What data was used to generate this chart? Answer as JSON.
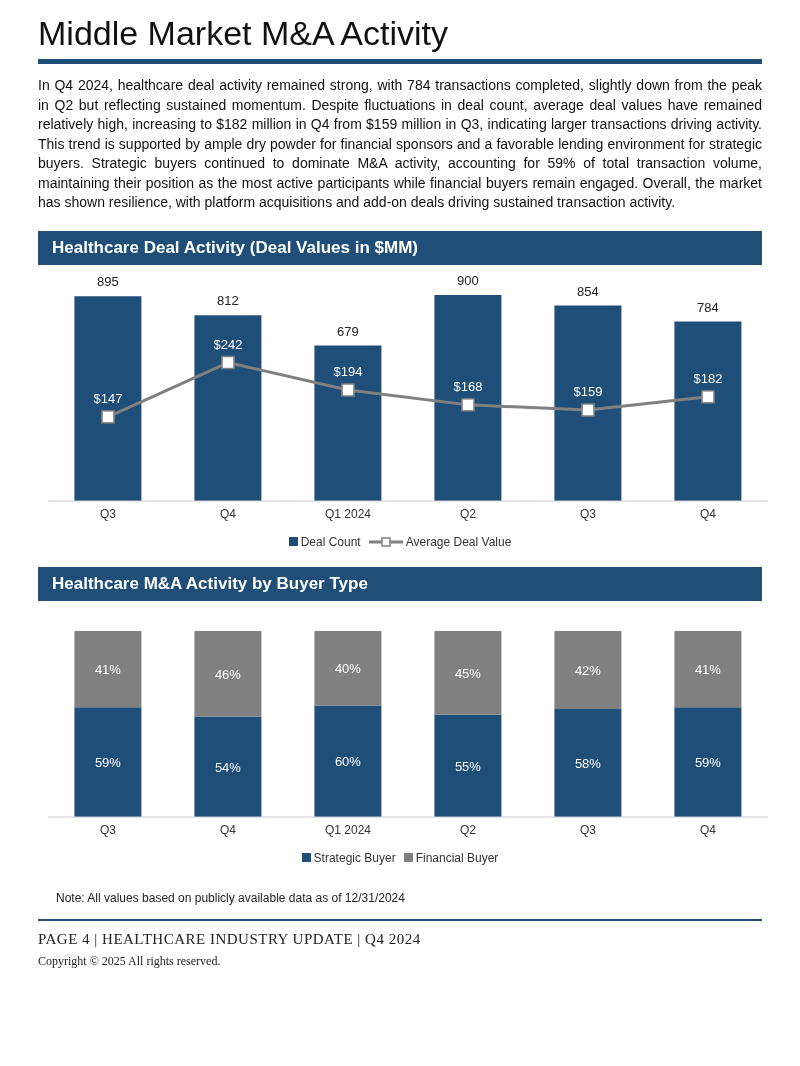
{
  "chart_data": [
    {
      "type": "other",
      "title": "Middle Market M&A Activity",
      "annotations": [
        "In Q4 2024, healthcare deal activity remained strong, with 784 transactions completed, slightly down from the peak in Q2 but reflecting sustained momentum. Despite fluctuations in deal count, average deal values have remained relatively high, increasing to $182 million in Q4 from $159 million in Q3, indicating larger transactions driving activity. This trend is supported by ample dry powder for financial sponsors and a favorable lending environment for strategic buyers. Strategic buyers continued to dominate M&A activity, accounting for 59% of total transaction volume, maintaining their position as the most active participants while financial buyers remain engaged. Overall, the market has shown resilience, with platform acquisitions and add-on deals driving sustained transaction activity."
      ]
    },
    {
      "type": "bar",
      "title": "Healthcare Deal Activity (Deal Values in $MM)",
      "categories": [
        "Q3",
        "Q4",
        "Q1 2024",
        "Q2",
        "Q3",
        "Q4"
      ],
      "series": [
        {
          "name": "Deal Count",
          "type": "bar",
          "color": "#1f4e79",
          "values": [
            895,
            812,
            679,
            900,
            854,
            784
          ],
          "value_labels": [
            "895",
            "812",
            "679",
            "900",
            "854",
            "784"
          ]
        },
        {
          "name": "Average Deal Value",
          "type": "line",
          "axis": "y2",
          "color": "#808080",
          "marker": "square",
          "values": [
            147,
            242,
            194,
            168,
            159,
            182
          ],
          "value_labels": [
            "$147",
            "$242",
            "$194",
            "$168",
            "$159",
            "$182"
          ]
        }
      ],
      "ylim": [
        0,
        900
      ],
      "y2lim": [
        0,
        360
      ],
      "tick_labels": "x",
      "grid": false,
      "legend": "bottom"
    },
    {
      "type": "bar",
      "title": "Healthcare M&A Activity by Buyer Type",
      "categories": [
        "Q3",
        "Q4",
        "Q1 2024",
        "Q2",
        "Q3",
        "Q4"
      ],
      "stacked": true,
      "series": [
        {
          "name": "Strategic Buyer",
          "color": "#1f4e79",
          "values": [
            59,
            54,
            60,
            55,
            58,
            59
          ],
          "value_labels": [
            "59%",
            "54%",
            "60%",
            "55%",
            "58%",
            "59%"
          ]
        },
        {
          "name": "Financial Buyer",
          "color": "#808080",
          "values": [
            41,
            46,
            40,
            45,
            42,
            41
          ],
          "value_labels": [
            "41%",
            "46%",
            "40%",
            "45%",
            "42%",
            "41%"
          ]
        }
      ],
      "ylim": [
        0,
        100
      ],
      "tick_labels": "x",
      "grid": false,
      "legend": "bottom",
      "annotations": [
        "Note: All values based on publicly available data as of 12/31/2024",
        "PAGE 4 | HEALTHCARE INDUSTRY UPDATE | Q4 2024",
        "Copyright © 2025 All rights reserved."
      ]
    }
  ]
}
